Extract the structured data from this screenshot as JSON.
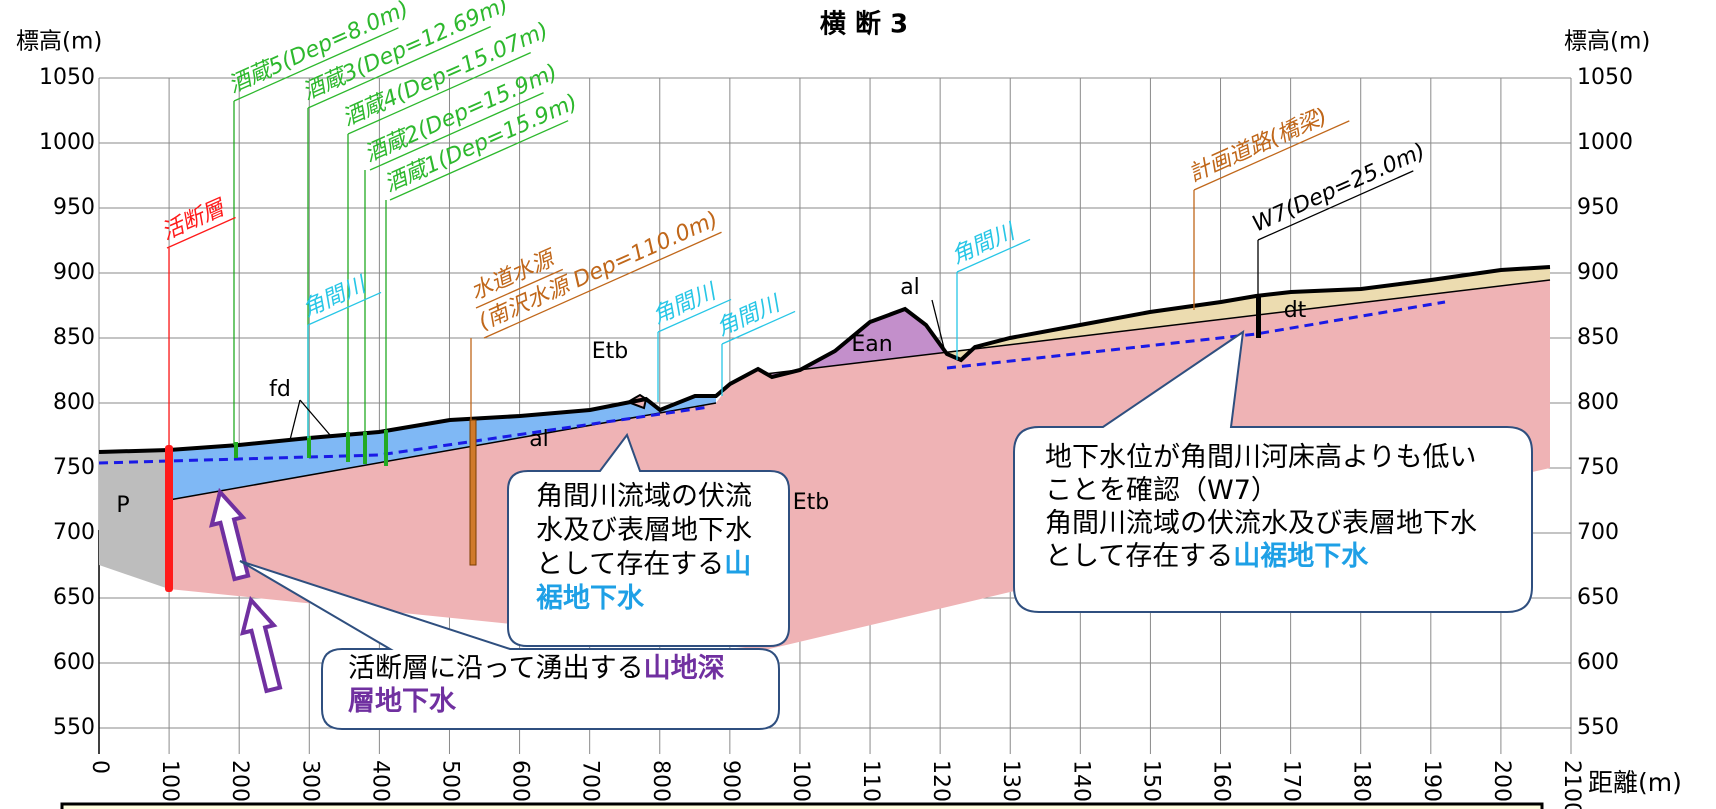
{
  "title": "横 断 3",
  "y_axis_label": "標高(m)",
  "y2_axis_label": "標高(m)",
  "x_axis_label": "距離(m)",
  "xlim": [
    0,
    2100
  ],
  "xticks": [
    0,
    100,
    200,
    300,
    400,
    500,
    600,
    700,
    800,
    900,
    1000,
    1100,
    1200,
    1300,
    1400,
    1500,
    1600,
    1700,
    1800,
    1900,
    2000,
    2100
  ],
  "ylim": [
    530,
    1050
  ],
  "yticks": [
    550,
    600,
    650,
    700,
    750,
    800,
    850,
    900,
    950,
    1000,
    1050
  ],
  "wells": [
    {
      "label": "活断層"
    },
    {
      "label": "酒蔵5(Dep=8.0m)"
    },
    {
      "label": "酒蔵3(Dep=12.69m)"
    },
    {
      "label": "酒蔵4(Dep=15.07m)"
    },
    {
      "label": "酒蔵2(Dep=15.9m)"
    },
    {
      "label": "酒蔵1(Dep=15.9m)"
    },
    {
      "label": "水道水源"
    },
    {
      "label": "(南沢水源 Dep=110.0m)"
    },
    {
      "label": "計画道路(橋梁)"
    },
    {
      "label": "W7(Dep=25.0m)"
    }
  ],
  "rivers": [
    "角間川",
    "角間川",
    "角間川",
    "角間川"
  ],
  "layers": [
    "fd",
    "al",
    "P",
    "Etb",
    "Etb",
    "Ean",
    "al",
    "dt"
  ],
  "callouts": [
    {
      "lines": [
        [
          {
            "text": "角間川流域の伏流"
          }
        ],
        [
          {
            "text": "水及び表層地下水"
          }
        ],
        [
          {
            "text": "として存在する"
          },
          {
            "text": "山",
            "bold": true
          }
        ],
        [
          {
            "text": "裾地下水",
            "bold": true
          }
        ]
      ]
    },
    {
      "lines": [
        [
          {
            "text": "活断層に沿って湧出する"
          },
          {
            "text": "山地深",
            "bold": true
          }
        ],
        [
          {
            "text": "層地下水",
            "bold": true
          }
        ]
      ]
    },
    {
      "lines": [
        [
          {
            "text": "地下水位が角間川河床高よりも低い"
          }
        ],
        [
          {
            "text": "ことを確認（W7）"
          }
        ],
        [
          {
            "text": "角間川流域の伏流水及び表層地下水"
          }
        ],
        [
          {
            "text": "として存在する"
          },
          {
            "text": "山裾地下水",
            "bold": true
          }
        ]
      ]
    }
  ]
}
